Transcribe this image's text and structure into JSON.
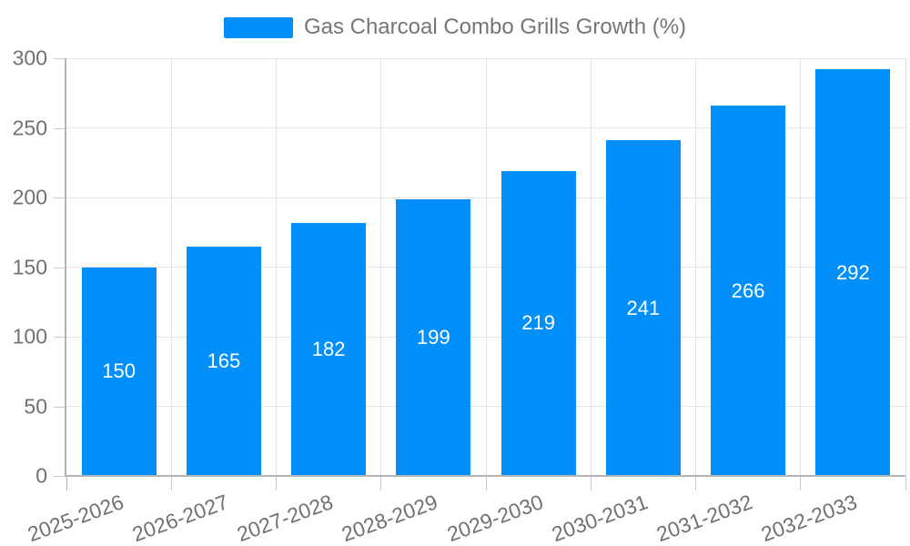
{
  "chart_data": {
    "type": "bar",
    "title": "Gas Charcoal Combo Grills Growth (%)",
    "categories": [
      "2025-2026",
      "2026-2027",
      "2027-2028",
      "2028-2029",
      "2029-2030",
      "2030-2031",
      "2031-2032",
      "2032-2033"
    ],
    "values": [
      150,
      165,
      182,
      199,
      219,
      241,
      266,
      292
    ],
    "xlabel": "",
    "ylabel": "",
    "ylim": [
      0,
      300
    ],
    "yticks": [
      0,
      50,
      100,
      150,
      200,
      250,
      300
    ],
    "grid": true,
    "legend_position": "top",
    "value_labels": "inside-center"
  },
  "colors": {
    "bar": "#008FFB",
    "value_label": "#FFFFFF",
    "axis_label": "#6E7276",
    "legend_text": "#73767A",
    "gridline": "#E3E3E3",
    "axis_line": "#B3B6B9",
    "tick": "#C9C9C9",
    "background": "#FFFFFF"
  }
}
